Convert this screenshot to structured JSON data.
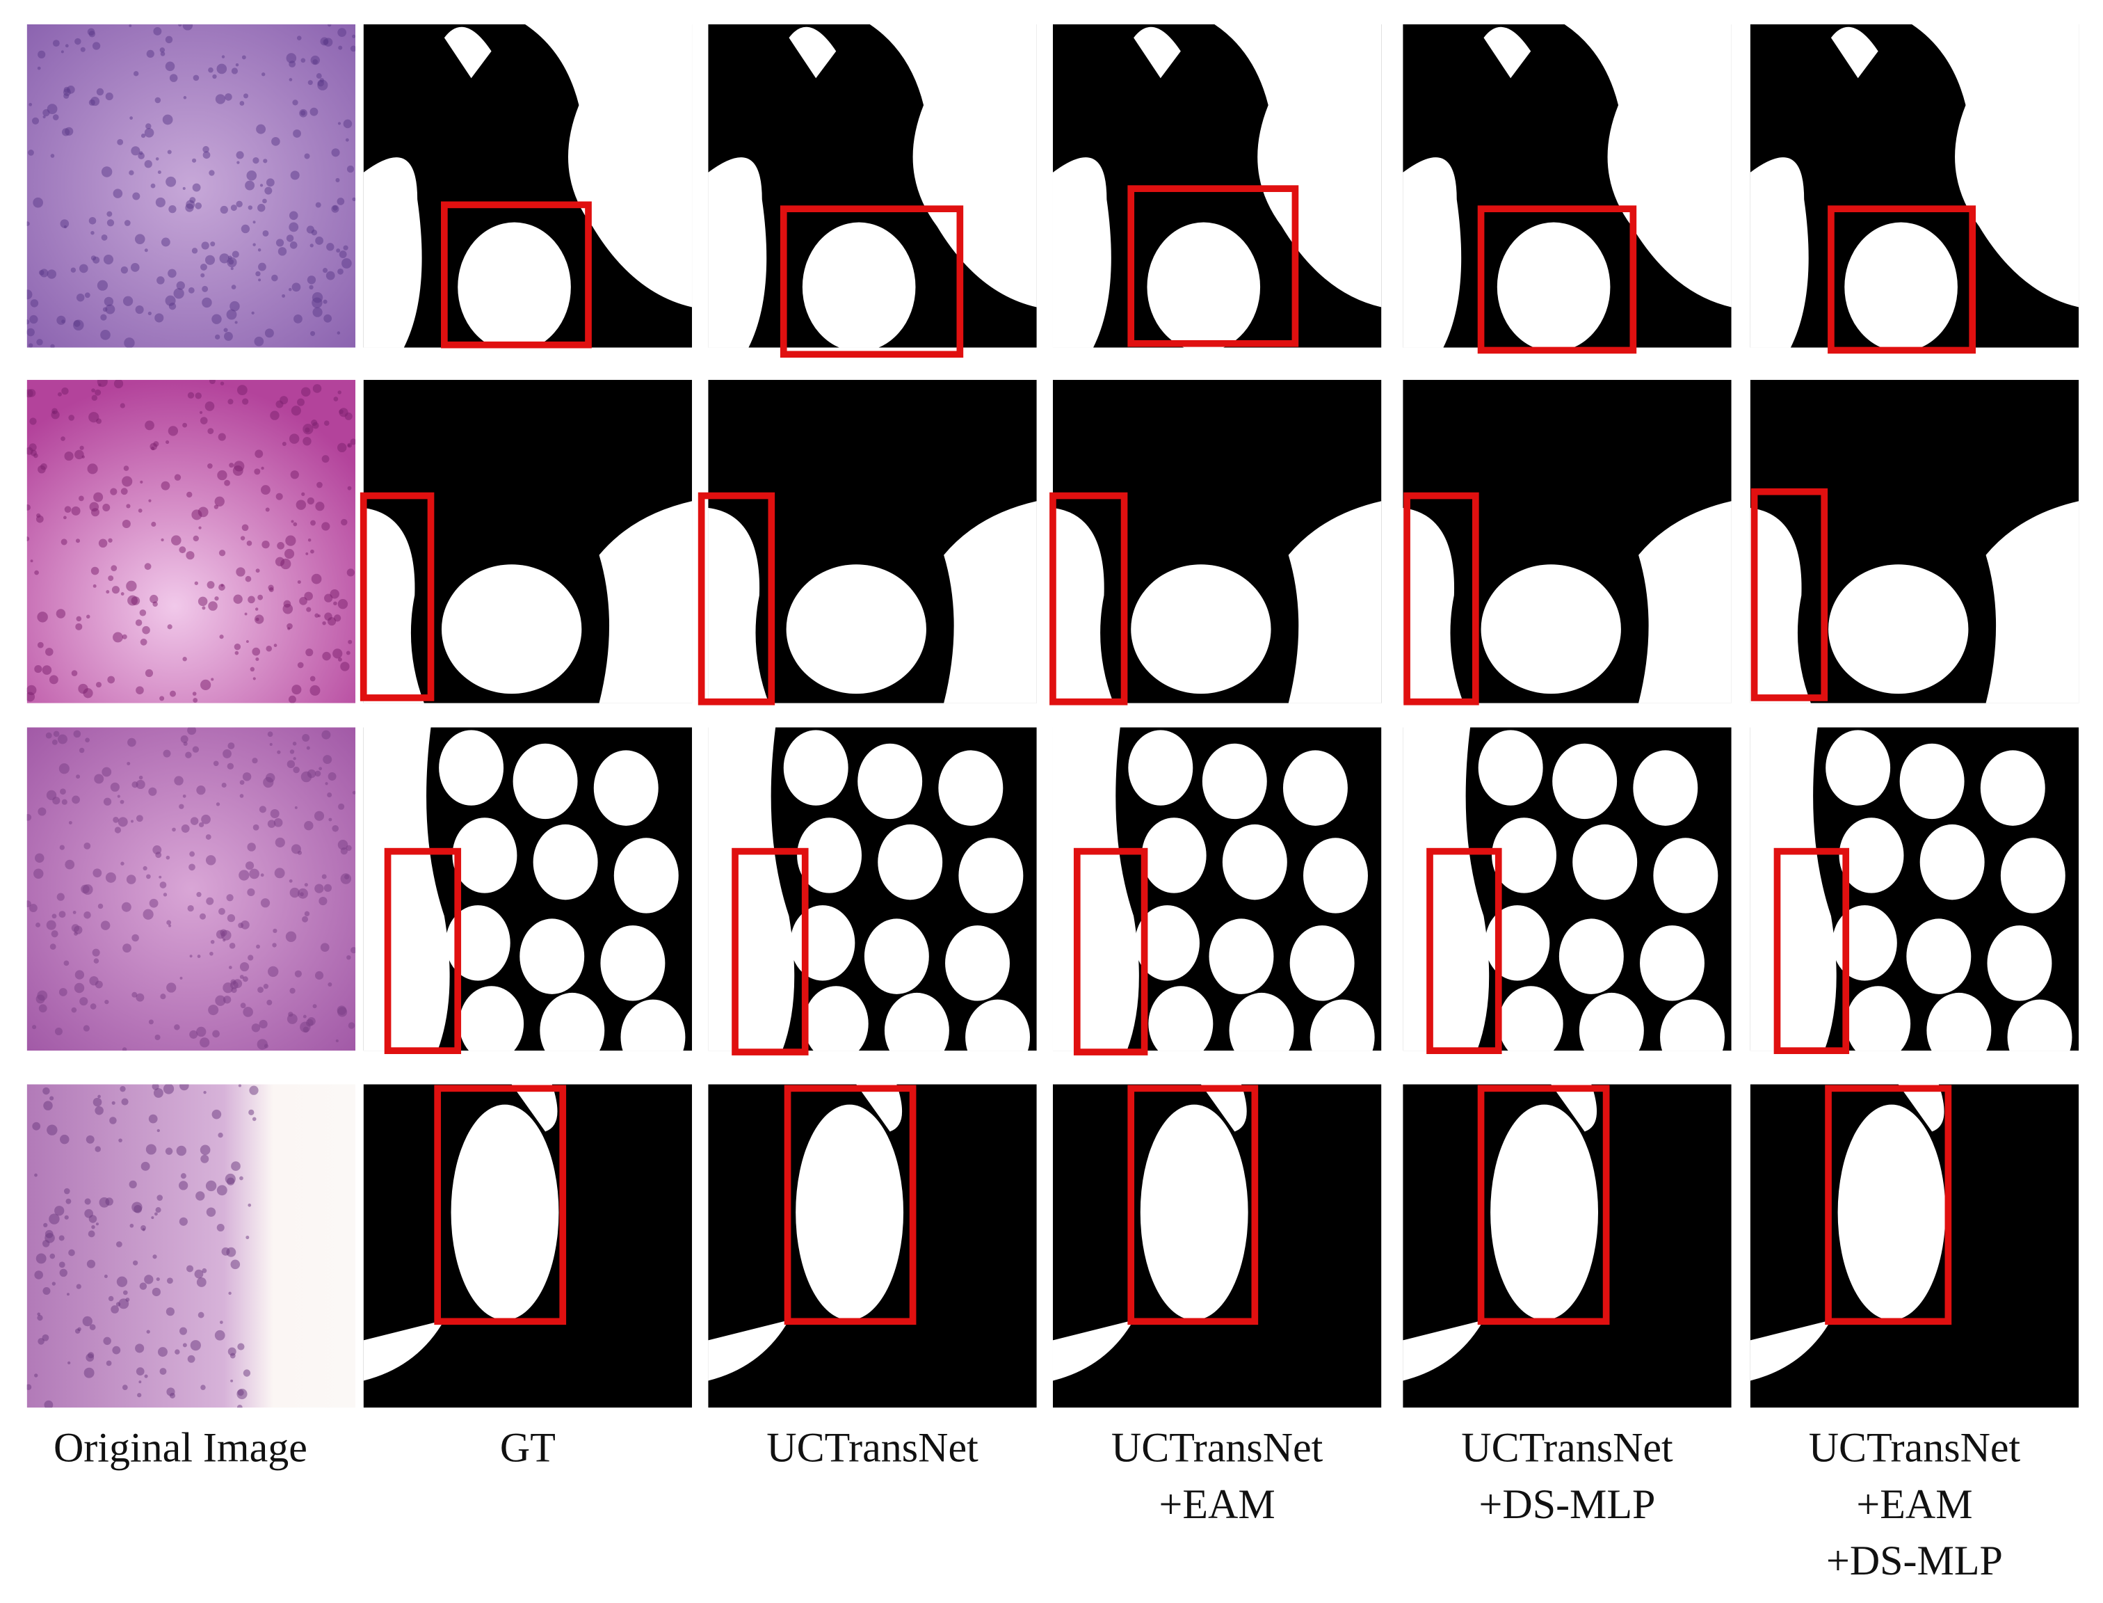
{
  "figure": {
    "columns": [
      {
        "label": [
          "Original Image"
        ]
      },
      {
        "label": [
          "GT"
        ]
      },
      {
        "label": [
          "UCTransNet"
        ]
      },
      {
        "label": [
          "UCTransNet",
          "+EAM"
        ]
      },
      {
        "label": [
          "UCTransNet",
          "+DS-MLP"
        ]
      },
      {
        "label": [
          "UCTransNet",
          "+EAM",
          "+DS-MLP"
        ]
      }
    ]
  }
}
